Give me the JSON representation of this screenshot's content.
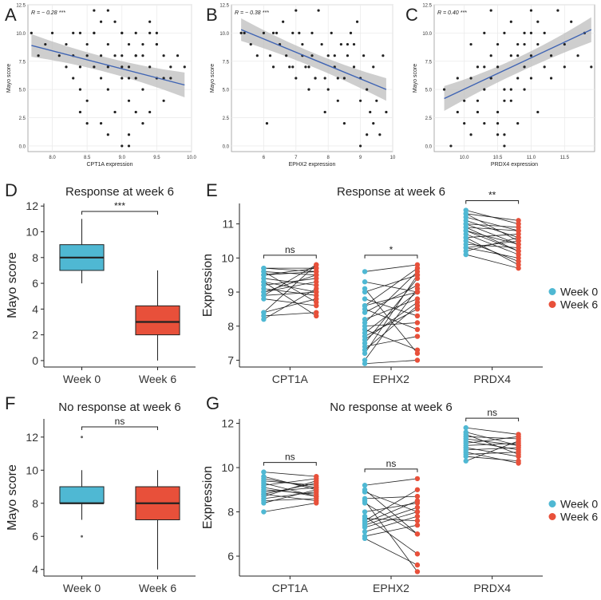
{
  "colors": {
    "week0": "#4FB8D3",
    "week6": "#E8503A",
    "regression": "#3F64B4",
    "ci_band": "#BEBEBE",
    "point": "#222222",
    "gridline": "#EBEBEB"
  },
  "chart_data": [
    {
      "panel": "A",
      "type": "scatter",
      "title": "",
      "xlabel": "CPT1A expression",
      "ylabel": "Mayo score",
      "annotation": "R = − 0.28 ***",
      "xlim": [
        7.65,
        10.0
      ],
      "ylim": [
        -0.5,
        12.5
      ],
      "xticks": [
        "8.0",
        "8.5",
        "9.0",
        "9.5",
        "10.0"
      ],
      "yticks": [
        "0.0",
        "2.5",
        "5.0",
        "7.5",
        "10.0",
        "12.5"
      ],
      "regression": {
        "x": [
          7.7,
          9.9
        ],
        "y": [
          8.9,
          5.4
        ],
        "ci_low_end": [
          7.9,
          4.3
        ],
        "ci_high_end": [
          9.9,
          6.5
        ],
        "ci_low_mid": [
          6.9,
          6.9
        ],
        "ci_high_mid": [
          7.4,
          7.4
        ]
      },
      "x": [
        7.7,
        7.8,
        7.9,
        8.0,
        8.1,
        8.2,
        8.2,
        8.3,
        8.3,
        8.4,
        8.4,
        8.4,
        8.5,
        8.5,
        8.5,
        8.6,
        8.6,
        8.6,
        8.7,
        8.7,
        8.7,
        8.8,
        8.8,
        8.8,
        8.9,
        8.9,
        9.0,
        9.0,
        9.0,
        9.0,
        9.1,
        9.1,
        9.1,
        9.1,
        9.2,
        9.2,
        9.2,
        9.3,
        9.3,
        9.3,
        9.4,
        9.4,
        9.4,
        9.5,
        9.5,
        9.5,
        9.6,
        9.6,
        9.7,
        9.7,
        9.8,
        9.9,
        8.4,
        8.6,
        8.8,
        9.0,
        9.2,
        9.4,
        8.5,
        8.9,
        9.1,
        9.3,
        9.0,
        9.1,
        8.8,
        9.2,
        9.6,
        8.3,
        8.7,
        9.5
      ],
      "y": [
        10,
        8,
        9,
        10,
        8,
        9,
        7,
        8,
        6,
        10,
        5,
        3,
        8,
        9,
        4,
        10,
        7,
        12,
        8,
        6,
        2,
        12,
        7,
        5,
        11,
        3,
        6,
        10,
        8,
        0,
        9,
        7,
        1,
        4,
        10,
        6,
        3,
        8,
        5,
        2,
        11,
        7,
        3,
        9,
        6,
        10,
        8,
        4,
        7,
        6,
        8,
        7,
        7,
        10,
        9,
        7,
        8,
        10,
        2,
        8,
        6,
        9,
        10,
        0,
        1,
        8,
        6,
        10,
        11,
        9
      ]
    },
    {
      "panel": "B",
      "type": "scatter",
      "title": "",
      "xlabel": "EPHX2 expression",
      "ylabel": "Mayo score",
      "annotation": "R = − 0.38 ***",
      "xlim": [
        5.0,
        10.0
      ],
      "ylim": [
        -0.5,
        12.5
      ],
      "xticks": [
        "6",
        "7",
        "8",
        "9",
        "10"
      ],
      "yticks": [
        "0.0",
        "2.5",
        "5.0",
        "7.5",
        "10.0",
        "12.5"
      ],
      "regression": {
        "x": [
          5.3,
          9.8
        ],
        "y": [
          10.3,
          5.0
        ],
        "ci_low_end": [
          9.3,
          4.0
        ],
        "ci_high_end": [
          11.3,
          6.0
        ],
        "ci_low_mid": [
          7.3,
          7.3
        ],
        "ci_high_mid": [
          7.8,
          7.8
        ]
      },
      "x": [
        5.3,
        5.4,
        5.6,
        5.8,
        6.0,
        6.1,
        6.2,
        6.3,
        6.4,
        6.5,
        6.6,
        6.7,
        6.8,
        6.9,
        7.0,
        7.0,
        7.1,
        7.2,
        7.3,
        7.4,
        7.5,
        7.5,
        7.6,
        7.7,
        7.8,
        7.9,
        8.0,
        8.0,
        8.1,
        8.2,
        8.3,
        8.4,
        8.5,
        8.5,
        8.6,
        8.7,
        8.8,
        8.9,
        9.0,
        9.0,
        9.1,
        9.2,
        9.3,
        9.4,
        9.5,
        9.6,
        9.7,
        9.8,
        6.9,
        7.2,
        7.6,
        8.2,
        8.6,
        9.0,
        9.2,
        7.4,
        7.9,
        8.8,
        6.3,
        8.3,
        9.4
      ],
      "y": [
        10,
        10,
        9,
        8,
        10,
        2,
        8,
        7,
        10,
        9,
        11,
        8,
        7,
        10,
        12,
        6,
        10,
        8,
        7,
        5,
        10,
        8,
        6,
        12,
        9,
        3,
        8,
        5,
        10,
        7,
        4,
        9,
        6,
        2,
        8,
        10,
        7,
        11,
        6,
        0,
        8,
        5,
        3,
        7,
        4,
        1,
        8,
        3,
        7,
        9,
        6,
        8,
        9,
        4,
        1,
        7,
        6,
        9,
        10,
        6,
        2
      ]
    },
    {
      "panel": "C",
      "type": "scatter",
      "title": "",
      "xlabel": "PRDX4 expression",
      "ylabel": "Mayo score",
      "annotation": "R = 0.40 ***",
      "xlim": [
        9.55,
        11.95
      ],
      "ylim": [
        -0.5,
        12.5
      ],
      "xticks": [
        "10.0",
        "10.5",
        "11.0",
        "11.5"
      ],
      "yticks": [
        "0.0",
        "2.5",
        "5.0",
        "7.5",
        "10.0",
        "12.5"
      ],
      "regression": {
        "x": [
          9.7,
          11.9
        ],
        "y": [
          4.2,
          10.3
        ],
        "ci_low_end": [
          3.1,
          9.2
        ],
        "ci_high_end": [
          5.3,
          11.4
        ],
        "ci_low_mid": [
          6.8,
          6.8
        ],
        "ci_high_mid": [
          7.3,
          7.3
        ]
      },
      "x": [
        9.7,
        9.8,
        9.9,
        9.9,
        10.0,
        10.0,
        10.1,
        10.1,
        10.2,
        10.2,
        10.3,
        10.3,
        10.3,
        10.4,
        10.4,
        10.4,
        10.5,
        10.5,
        10.5,
        10.5,
        10.6,
        10.6,
        10.6,
        10.7,
        10.7,
        10.7,
        10.8,
        10.8,
        10.8,
        10.9,
        10.9,
        10.9,
        11.0,
        11.0,
        11.0,
        11.1,
        11.1,
        11.2,
        11.2,
        11.3,
        11.3,
        11.4,
        11.5,
        11.5,
        11.6,
        11.7,
        11.8,
        11.9,
        10.2,
        10.4,
        10.6,
        10.8,
        11.0,
        10.3,
        10.5,
        10.7,
        10.9,
        11.1,
        10.1,
        10.6
      ],
      "y": [
        5,
        0,
        3,
        6,
        2,
        4,
        9,
        1,
        3,
        7,
        10,
        5,
        2,
        6,
        8,
        12,
        3,
        9,
        7,
        1,
        10,
        5,
        0,
        8,
        11,
        4,
        6,
        9,
        2,
        10,
        7,
        5,
        8,
        12,
        6,
        9,
        11,
        7,
        10,
        8,
        6,
        12,
        9,
        7,
        11,
        8,
        10,
        7,
        4,
        6,
        4,
        8,
        10,
        7,
        2,
        5,
        9,
        3,
        6,
        1
      ]
    },
    {
      "panel": "D",
      "type": "box",
      "title": "Response at week 6",
      "xlabel": "",
      "ylabel": "Mayo score",
      "ylim": [
        -0.5,
        12.2
      ],
      "yticks": [
        "0",
        "2",
        "4",
        "6",
        "8",
        "10",
        "12"
      ],
      "categories": [
        "Week 0",
        "Week 6"
      ],
      "significance": "***",
      "boxes": [
        {
          "name": "Week 0",
          "min": 6,
          "q1": 7,
          "median": 8,
          "q3": 9,
          "max": 11,
          "outliers": []
        },
        {
          "name": "Week 6",
          "min": 0,
          "q1": 2,
          "median": 3,
          "q3": 4.25,
          "max": 7,
          "outliers": []
        }
      ]
    },
    {
      "panel": "E",
      "type": "paired-line",
      "title": "Response at week 6",
      "xlabel": "",
      "ylabel": "Expression",
      "ylim": [
        6.8,
        11.6
      ],
      "yticks": [
        "7",
        "8",
        "9",
        "10",
        "11"
      ],
      "categories": [
        "CPT1A",
        "EPHX2",
        "PRDX4"
      ],
      "significance": [
        "ns",
        "*",
        "**"
      ],
      "legend": [
        "Week 0",
        "Week 6"
      ],
      "series": [
        {
          "name": "CPT1A",
          "week0": [
            9.7,
            9.6,
            9.5,
            9.4,
            9.3,
            9.2,
            9.1,
            9.0,
            8.9,
            8.8,
            8.4,
            8.3,
            8.2,
            9.6,
            9.5,
            9.3,
            9.0,
            8.9,
            8.4,
            9.7
          ],
          "week6": [
            9.6,
            9.5,
            9.7,
            9.2,
            9.0,
            9.4,
            8.9,
            9.3,
            9.8,
            8.6,
            8.8,
            8.4,
            9.1,
            8.7,
            9.6,
            8.3,
            9.5,
            9.0,
            9.8,
            9.7
          ]
        },
        {
          "name": "EPHX2",
          "week0": [
            9.6,
            9.3,
            9.0,
            8.8,
            8.6,
            8.5,
            8.4,
            8.2,
            8.1,
            8.0,
            7.9,
            7.8,
            7.6,
            7.5,
            7.4,
            7.3,
            7.2,
            6.9,
            8.6,
            7.7,
            7.0,
            9.1
          ],
          "week6": [
            9.8,
            9.0,
            9.5,
            8.3,
            9.7,
            7.9,
            9.2,
            8.8,
            9.6,
            8.1,
            7.3,
            9.0,
            8.7,
            9.4,
            7.7,
            8.6,
            9.5,
            7.0,
            9.0,
            8.5,
            9.1,
            7.2
          ]
        },
        {
          "name": "PRDX4",
          "week0": [
            11.4,
            11.3,
            11.2,
            11.1,
            11.0,
            10.9,
            10.8,
            10.7,
            10.6,
            10.5,
            10.4,
            10.3,
            10.2,
            10.1,
            11.3,
            10.9,
            10.6,
            10.3,
            11.0,
            10.8
          ],
          "week6": [
            11.0,
            10.5,
            10.8,
            10.6,
            10.9,
            10.2,
            10.4,
            10.1,
            10.7,
            9.9,
            10.3,
            10.0,
            10.6,
            9.7,
            11.1,
            10.8,
            9.8,
            10.5,
            10.4,
            10.2
          ]
        }
      ]
    },
    {
      "panel": "F",
      "type": "box",
      "title": "No response at week 6",
      "xlabel": "",
      "ylabel": "Mayo score",
      "ylim": [
        3.6,
        13.1
      ],
      "yticks": [
        "4",
        "6",
        "8",
        "10",
        "12"
      ],
      "categories": [
        "Week 0",
        "Week 6"
      ],
      "significance": "ns",
      "boxes": [
        {
          "name": "Week 0",
          "min": 7,
          "q1": 8,
          "median": 8,
          "q3": 9,
          "max": 10,
          "outliers": [
            12,
            6
          ]
        },
        {
          "name": "Week 6",
          "min": 4,
          "q1": 7,
          "median": 8,
          "q3": 9,
          "max": 10,
          "outliers": []
        }
      ]
    },
    {
      "panel": "G",
      "type": "paired-line",
      "title": "No response at week 6",
      "xlabel": "",
      "ylabel": "Expression",
      "ylim": [
        5.1,
        12.2
      ],
      "yticks": [
        "6",
        "8",
        "10",
        "12"
      ],
      "categories": [
        "CPT1A",
        "EPHX2",
        "PRDX4"
      ],
      "significance": [
        "ns",
        "ns",
        "ns"
      ],
      "legend": [
        "Week 0",
        "Week 6"
      ],
      "series": [
        {
          "name": "CPT1A",
          "week0": [
            9.8,
            9.6,
            9.4,
            9.3,
            9.2,
            9.0,
            8.9,
            8.8,
            8.7,
            8.6,
            8.5,
            8.4,
            8.0,
            9.1,
            8.8,
            9.5
          ],
          "week6": [
            9.6,
            9.0,
            9.2,
            8.7,
            9.5,
            8.8,
            9.1,
            8.5,
            9.4,
            8.9,
            8.6,
            9.0,
            8.4,
            8.7,
            9.3,
            9.1
          ]
        },
        {
          "name": "EPHX2",
          "week0": [
            9.2,
            8.9,
            8.6,
            8.4,
            8.0,
            7.8,
            7.7,
            7.5,
            7.3,
            7.1,
            6.9,
            6.8,
            7.6,
            8.5,
            9.0,
            7.4
          ],
          "week6": [
            9.5,
            8.0,
            8.7,
            7.0,
            8.4,
            6.1,
            7.6,
            8.5,
            8.0,
            7.8,
            7.4,
            5.6,
            9.0,
            5.3,
            7.0,
            8.2
          ]
        },
        {
          "name": "PRDX4",
          "week0": [
            11.8,
            11.6,
            11.4,
            11.2,
            11.0,
            10.9,
            10.8,
            10.6,
            10.5,
            10.3,
            11.5,
            11.1,
            10.7,
            11.3
          ],
          "week6": [
            11.5,
            11.0,
            11.3,
            10.8,
            11.1,
            10.5,
            10.9,
            10.7,
            10.3,
            11.2,
            10.6,
            11.4,
            10.2,
            11.0
          ]
        }
      ]
    }
  ],
  "panels": {
    "A": {
      "letter": "A"
    },
    "B": {
      "letter": "B"
    },
    "C": {
      "letter": "C"
    },
    "D": {
      "letter": "D"
    },
    "E": {
      "letter": "E"
    },
    "F": {
      "letter": "F"
    },
    "G": {
      "letter": "G"
    }
  }
}
